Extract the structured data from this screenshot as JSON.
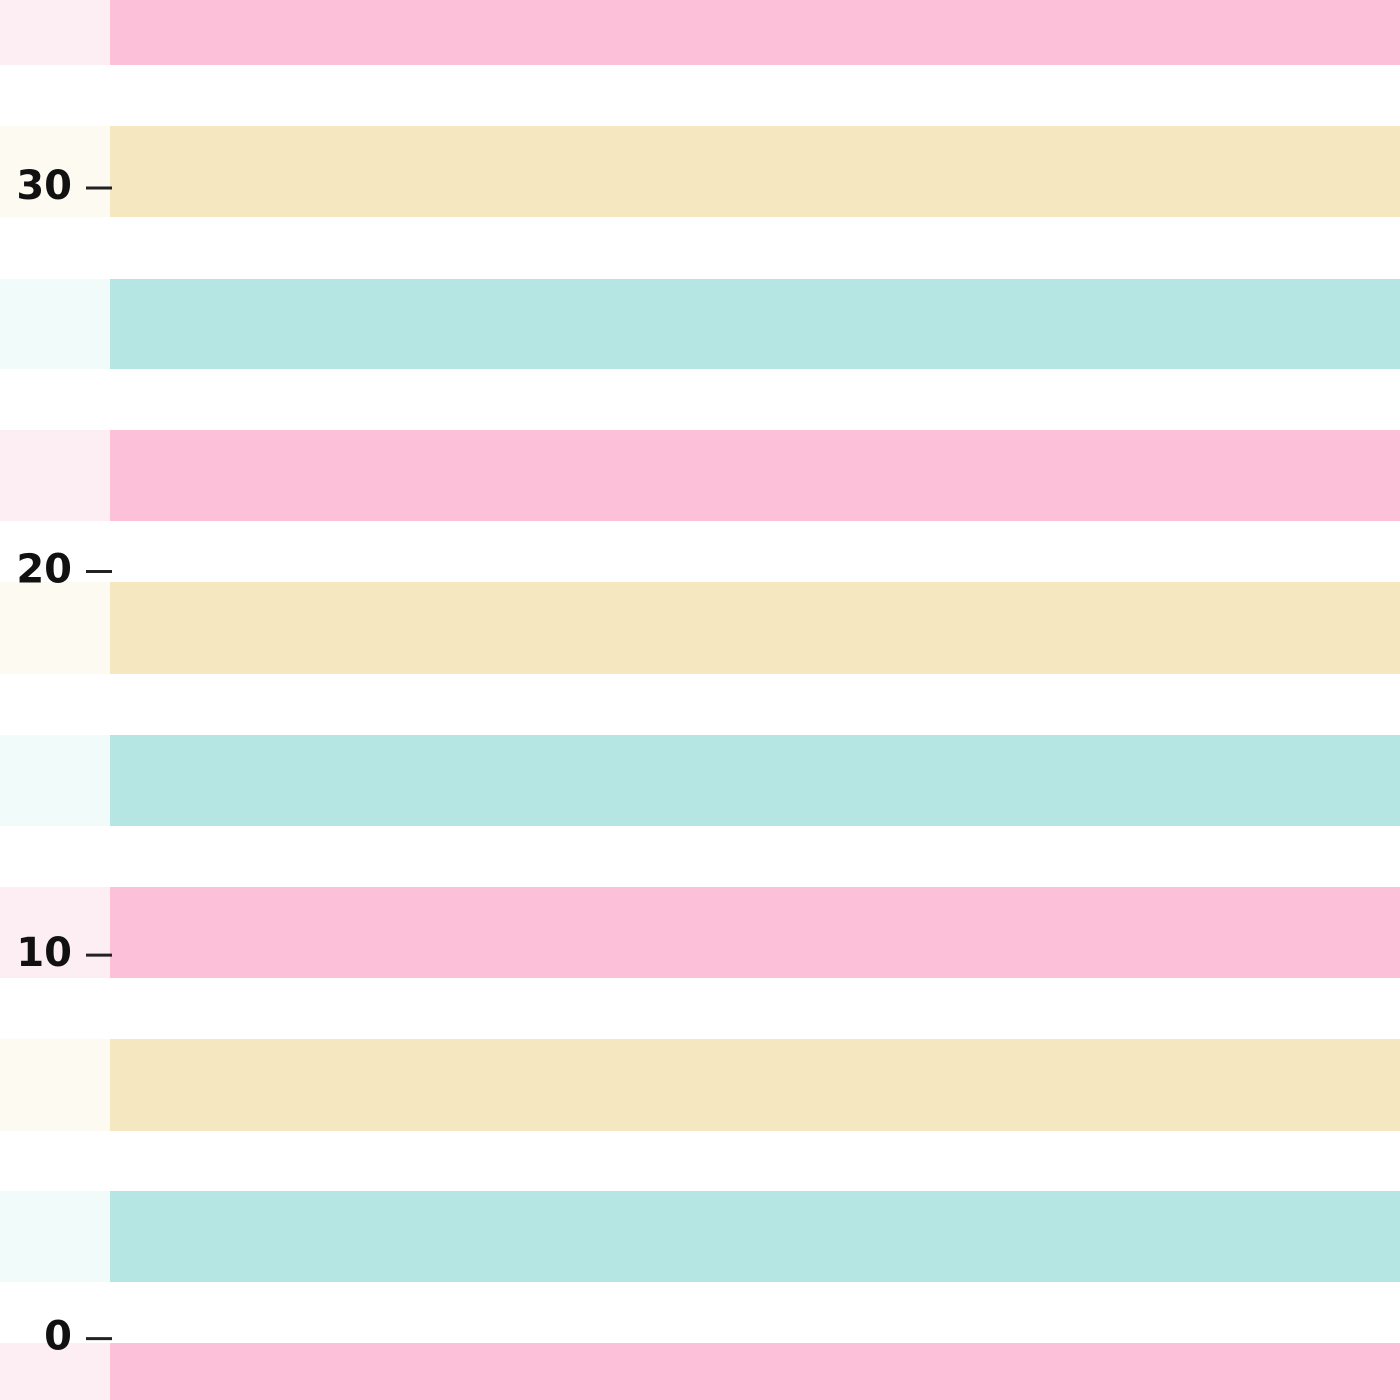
{
  "axis": {
    "ylim": [
      -1.6,
      34.9
    ],
    "yticks": [
      0,
      10,
      20,
      30
    ]
  }
}
